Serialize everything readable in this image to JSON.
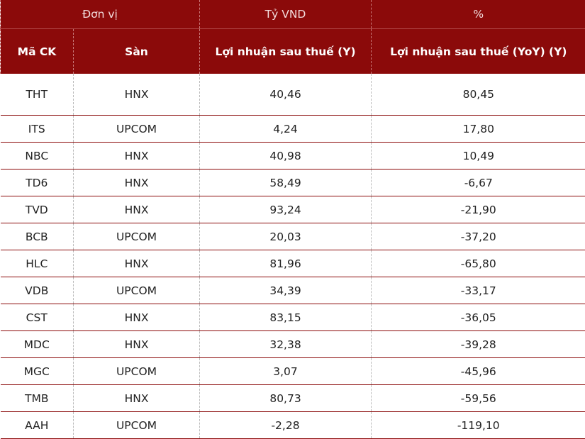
{
  "table": {
    "units": [
      "Đơn vị",
      "Tỷ VND",
      "%"
    ],
    "header": [
      "Mã CK",
      "Sàn",
      "Lợi nhuận sau thuế (Y)",
      "Lợi nhuận sau thuế (YoY) (Y)"
    ],
    "rows": [
      [
        "THT",
        "HNX",
        "40,46",
        "80,45"
      ],
      [
        "ITS",
        "UPCOM",
        "4,24",
        "17,80"
      ],
      [
        "NBC",
        "HNX",
        "40,98",
        "10,49"
      ],
      [
        "TD6",
        "HNX",
        "58,49",
        "-6,67"
      ],
      [
        "TVD",
        "HNX",
        "93,24",
        "-21,90"
      ],
      [
        "BCB",
        "UPCOM",
        "20,03",
        "-37,20"
      ],
      [
        "HLC",
        "HNX",
        "81,96",
        "-65,80"
      ],
      [
        "VDB",
        "UPCOM",
        "34,39",
        "-33,17"
      ],
      [
        "CST",
        "HNX",
        "83,15",
        "-36,05"
      ],
      [
        "MDC",
        "HNX",
        "32,38",
        "-39,28"
      ],
      [
        "MGC",
        "UPCOM",
        "3,07",
        "-45,96"
      ],
      [
        "TMB",
        "HNX",
        "80,73",
        "-59,56"
      ],
      [
        "AAH",
        "UPCOM",
        "-2,28",
        "-119,10"
      ]
    ]
  }
}
